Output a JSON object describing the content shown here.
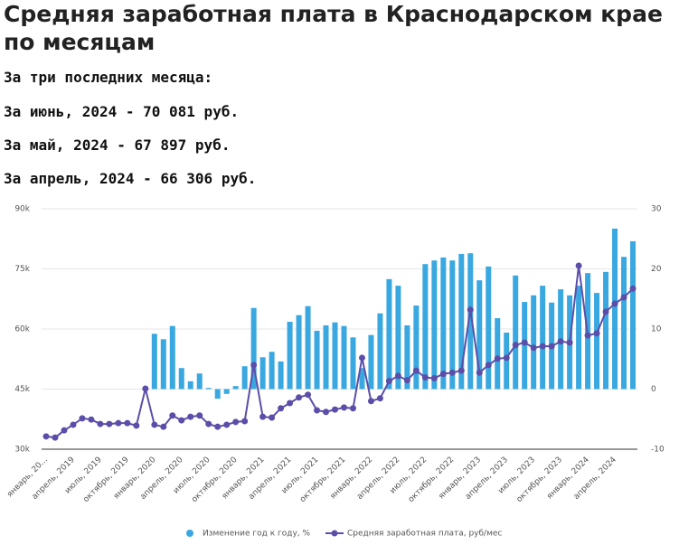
{
  "header": {
    "title": "Средняя заработная плата в Краснодарском крае по месяцам",
    "lines": [
      "За три последних месяца:",
      "За июнь, 2024 - 70 081 руб.",
      "За май, 2024 - 67 897 руб.",
      "За апрель, 2024 - 66 306 руб."
    ]
  },
  "chart_data": {
    "type": "bar_line",
    "categories": [
      "январь, 20...",
      null,
      null,
      "апрель, 2019",
      null,
      null,
      "июль, 2019",
      null,
      null,
      "октябрь, 2019",
      null,
      null,
      "январь, 2020",
      null,
      null,
      "апрель, 2020",
      null,
      null,
      "июль, 2020",
      null,
      null,
      "октябрь, 2020",
      null,
      null,
      "январь, 2021",
      null,
      null,
      "апрель, 2021",
      null,
      null,
      "июль, 2021",
      null,
      null,
      "октябрь, 2021",
      null,
      null,
      "январь, 2022",
      null,
      null,
      "апрель, 2022",
      null,
      null,
      "июль, 2022",
      null,
      null,
      "октябрь, 2022",
      null,
      null,
      "январь, 2023",
      null,
      null,
      "апрель, 2023",
      null,
      null,
      "июль, 2023",
      null,
      null,
      "октябрь, 2023",
      null,
      null,
      "январь, 2024",
      null,
      null,
      "апрель, 2024",
      null,
      null
    ],
    "series": [
      {
        "name": "Изменение год к году, %",
        "color": "#3aa8e0",
        "axis": "y2",
        "kind": "bar",
        "values": [
          null,
          null,
          null,
          null,
          null,
          null,
          null,
          null,
          null,
          null,
          null,
          null,
          9.2,
          8.3,
          10.5,
          3.5,
          1.3,
          2.6,
          0.2,
          -1.6,
          -0.8,
          0.5,
          3.8,
          13.5,
          5.3,
          6.2,
          4.6,
          11.2,
          12.3,
          13.8,
          9.7,
          10.6,
          11.1,
          10.5,
          8.6,
          3.5,
          9.0,
          12.6,
          18.3,
          17.2,
          10.6,
          13.9,
          20.8,
          21.4,
          21.9,
          21.4,
          22.5,
          22.6,
          18.1,
          20.4,
          11.8,
          9.4,
          18.9,
          14.5,
          15.6,
          17.2,
          14.4,
          16.6,
          15.6,
          17.2,
          19.3,
          16.0,
          19.5,
          26.7,
          22.0,
          24.6
        ]
      },
      {
        "name": "Средняя заработная плата, руб/мес",
        "color": "#5b4ea8",
        "axis": "y",
        "kind": "line",
        "values": [
          33200,
          32900,
          34700,
          36100,
          37700,
          37400,
          36300,
          36300,
          36500,
          36500,
          35900,
          45100,
          36100,
          35600,
          38400,
          37200,
          38100,
          38400,
          36300,
          35600,
          36100,
          36800,
          37000,
          51000,
          38100,
          37900,
          40200,
          41500,
          42900,
          43600,
          39700,
          39300,
          39900,
          40400,
          40200,
          52800,
          42000,
          42700,
          47000,
          48300,
          47200,
          49600,
          47900,
          47700,
          48800,
          49100,
          49600,
          64800,
          49100,
          51000,
          52600,
          52800,
          56000,
          56600,
          55300,
          55700,
          55700,
          56900,
          56600,
          75800,
          58400,
          58900,
          64300,
          66306,
          67897,
          70081
        ]
      }
    ],
    "ylim": [
      30000,
      90000
    ],
    "yticks": [
      {
        "value": 30000,
        "label": "30k"
      },
      {
        "value": 45000,
        "label": "45k"
      },
      {
        "value": 60000,
        "label": "60k"
      },
      {
        "value": 75000,
        "label": "75k"
      },
      {
        "value": 90000,
        "label": "90k"
      }
    ],
    "y2lim": [
      -10,
      30
    ],
    "y2ticks": [
      -10,
      0,
      10,
      20,
      30
    ],
    "grid": true,
    "legend": "bottom"
  }
}
